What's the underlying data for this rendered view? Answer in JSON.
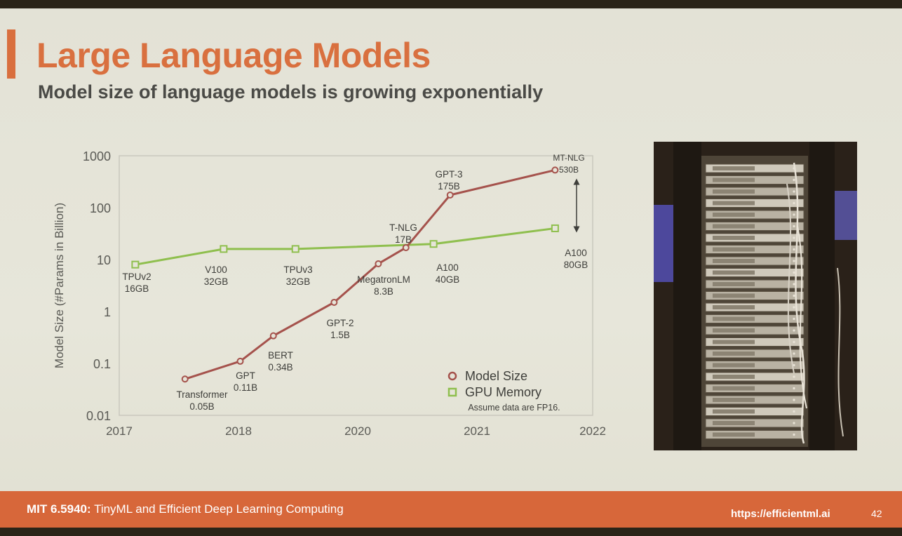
{
  "colors": {
    "accent": "#d96f3e",
    "title": "#d9703f",
    "footer": "#d7673a",
    "model_series": "#a5524c",
    "gpu_series": "#8fbf4e",
    "axis_text": "#5a5a55",
    "label_text": "#3e3e3a"
  },
  "slide": {
    "title": "Large Language Models",
    "subtitle": "Model size of language models is growing exponentially"
  },
  "chart_data": {
    "type": "line",
    "title": "",
    "xlabel": "",
    "ylabel": "Model Size (#Params in Billion)",
    "yscale": "log",
    "ylim": [
      0.01,
      1000
    ],
    "xlim": [
      2017,
      2022
    ],
    "y_ticks": [
      "1000",
      "100",
      "10",
      "1",
      "0.1",
      "0.01"
    ],
    "x_ticks": [
      "2017",
      "2018",
      "2020",
      "2021",
      "2022"
    ],
    "grid": false,
    "legend_position": "bottom-right",
    "note": "Assume data are FP16.",
    "series": [
      {
        "name": "Model Size",
        "marker": "circle",
        "points": [
          {
            "label": "Transformer",
            "value_label": "0.05B",
            "x": 0.5,
            "y": 0.05
          },
          {
            "label": "GPT",
            "value_label": "0.11B",
            "x": 1.0,
            "y": 0.11
          },
          {
            "label": "BERT",
            "value_label": "0.34B",
            "x": 1.3,
            "y": 0.34
          },
          {
            "label": "GPT-2",
            "value_label": "1.5B",
            "x": 1.85,
            "y": 1.5
          },
          {
            "label": "MegatronLM",
            "value_label": "8.3B",
            "x": 2.25,
            "y": 8.3
          },
          {
            "label": "T-NLG",
            "value_label": "17B",
            "x": 2.5,
            "y": 17
          },
          {
            "label": "GPT-3",
            "value_label": "175B",
            "x": 2.9,
            "y": 175
          },
          {
            "label": "MT-NLG",
            "value_label": "530B",
            "x": 3.85,
            "y": 530
          }
        ]
      },
      {
        "name": "GPU Memory",
        "marker": "square",
        "points": [
          {
            "label": "TPUv2",
            "value_label": "16GB",
            "x": 0.05,
            "y": 8
          },
          {
            "label": "V100",
            "value_label": "32GB",
            "x": 0.85,
            "y": 16
          },
          {
            "label": "TPUv3",
            "value_label": "32GB",
            "x": 1.5,
            "y": 16
          },
          {
            "label": "A100",
            "value_label": "40GB",
            "x": 2.75,
            "y": 20
          },
          {
            "label": "A100",
            "value_label": "80GB",
            "x": 3.85,
            "y": 40
          }
        ]
      }
    ]
  },
  "photo": {
    "subject": "server-rack"
  },
  "footer": {
    "course_code": "MIT 6.5940:",
    "course_name": " TinyML and Efficient Deep Learning Computing",
    "url": "https://efficientml.ai",
    "page_number": "42"
  }
}
